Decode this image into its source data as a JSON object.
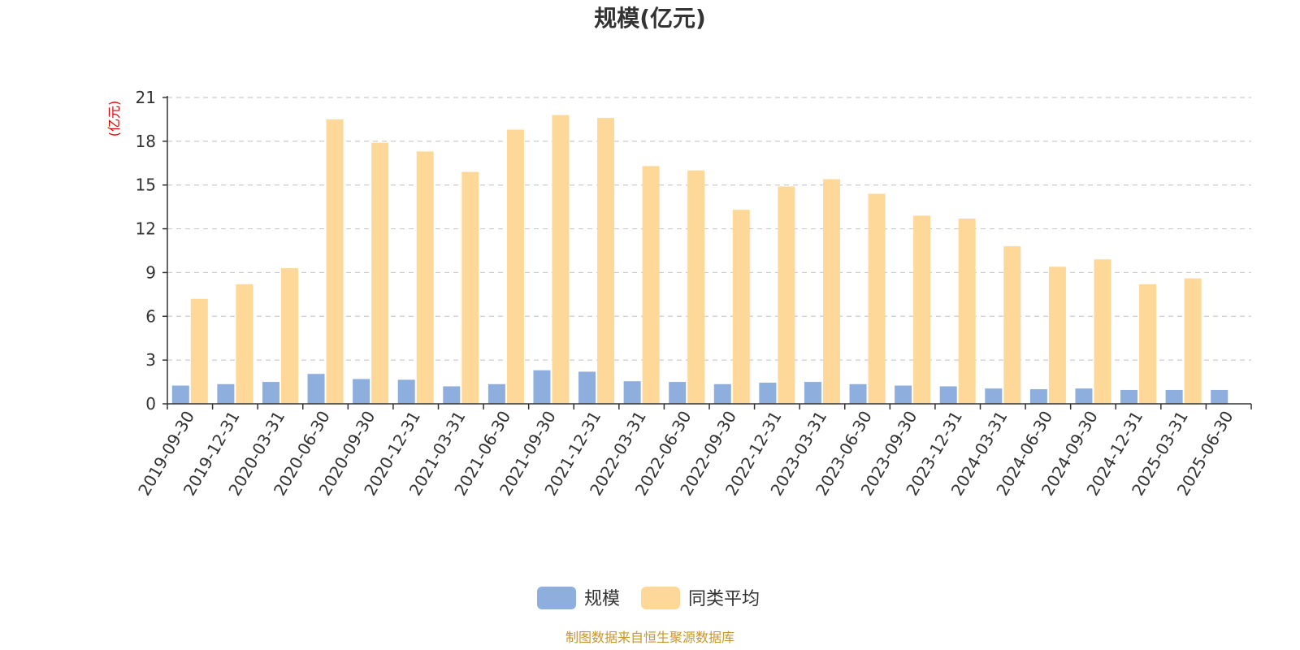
{
  "chart_data": {
    "type": "bar",
    "title": "规模(亿元)",
    "ylabel": "(亿元)",
    "ylim": [
      0,
      21
    ],
    "yticks": [
      0,
      3,
      6,
      9,
      12,
      15,
      18,
      21
    ],
    "grid": true,
    "legend_position": "bottom-center",
    "categories": [
      "2019-09-30",
      "2019-12-31",
      "2020-03-31",
      "2020-06-30",
      "2020-09-30",
      "2020-12-31",
      "2021-03-31",
      "2021-06-30",
      "2021-09-30",
      "2021-12-31",
      "2022-03-31",
      "2022-06-30",
      "2022-09-30",
      "2022-12-31",
      "2023-03-31",
      "2023-06-30",
      "2023-09-30",
      "2023-12-31",
      "2024-03-31",
      "2024-06-30",
      "2024-09-30",
      "2024-12-31",
      "2025-03-31",
      "2025-06-30"
    ],
    "series": [
      {
        "name": "规模",
        "color": "#8eaedd",
        "values": [
          1.25,
          1.35,
          1.5,
          2.05,
          1.7,
          1.65,
          1.2,
          1.35,
          2.3,
          2.2,
          1.55,
          1.5,
          1.35,
          1.45,
          1.5,
          1.35,
          1.25,
          1.2,
          1.05,
          1.0,
          1.05,
          0.95,
          0.95,
          0.95
        ]
      },
      {
        "name": "同类平均",
        "color": "#fed898",
        "values": [
          7.2,
          8.2,
          9.3,
          19.5,
          17.9,
          17.3,
          15.9,
          18.8,
          19.8,
          19.6,
          16.3,
          16.0,
          13.3,
          14.9,
          15.4,
          14.4,
          12.9,
          12.7,
          10.8,
          9.4,
          9.9,
          8.2,
          8.6,
          null
        ]
      }
    ]
  },
  "source_note": "制图数据来自恒生聚源数据库"
}
